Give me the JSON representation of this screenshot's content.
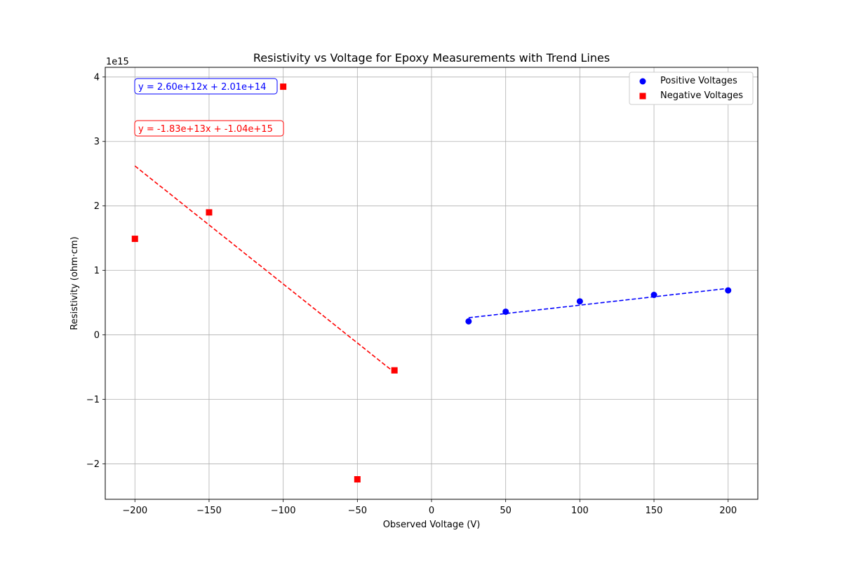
{
  "chart_data": {
    "type": "scatter",
    "title": "Resistivity vs Voltage for Epoxy Measurements with Trend Lines",
    "xlabel": "Observed Voltage (V)",
    "ylabel": "Resistivity (ohm·cm)",
    "y_offset_label": "1e15",
    "xlim": [
      -220,
      220
    ],
    "ylim": [
      -2.55,
      4.15
    ],
    "x_ticks": [
      -200,
      -150,
      -100,
      -50,
      0,
      50,
      100,
      150,
      200
    ],
    "x_tick_labels": [
      "−200",
      "−150",
      "−100",
      "−50",
      "0",
      "50",
      "100",
      "150",
      "200"
    ],
    "y_ticks": [
      -2,
      -1,
      0,
      1,
      2,
      3,
      4
    ],
    "y_tick_labels": [
      "−2",
      "−1",
      "0",
      "1",
      "2",
      "3",
      "4"
    ],
    "grid": true,
    "legend_position": "top-right",
    "series": [
      {
        "name": "Positive Voltages",
        "color": "#0000ff",
        "marker": "circle",
        "x": [
          25,
          50,
          100,
          150,
          200
        ],
        "y": [
          0.21,
          0.36,
          0.52,
          0.62,
          0.69
        ]
      },
      {
        "name": "Negative Voltages",
        "color": "#ff0000",
        "marker": "square",
        "x": [
          -200,
          -150,
          -100,
          -50,
          -25
        ],
        "y": [
          1.49,
          1.9,
          3.85,
          -2.24,
          -0.55
        ]
      }
    ],
    "trend_lines": [
      {
        "color": "#0000ff",
        "x_range": [
          25,
          200
        ],
        "y_values": [
          0.266,
          0.721
        ],
        "style": "dashed"
      },
      {
        "color": "#ff0000",
        "x_range": [
          -200,
          -25
        ],
        "y_values": [
          2.62,
          -0.583
        ],
        "style": "dashed"
      }
    ],
    "annotations": [
      {
        "text": "y = 2.60e+12x + 2.01e+14",
        "color": "#0000ff"
      },
      {
        "text": "y = -1.83e+13x + -1.04e+15",
        "color": "#ff0000"
      }
    ]
  }
}
